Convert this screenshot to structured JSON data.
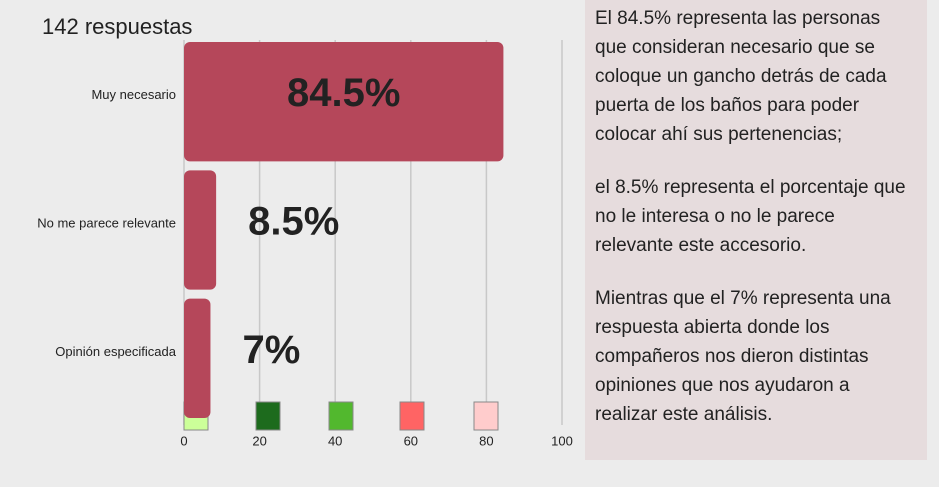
{
  "chart_data": {
    "type": "bar",
    "orientation": "horizontal",
    "subtitle": "142 respuestas",
    "categories": [
      "Muy necesario",
      "No me parece relevante",
      "Opinión especificada"
    ],
    "values": [
      84.5,
      8.5,
      7
    ],
    "value_labels": [
      "84.5%",
      "8.5%",
      "7%"
    ],
    "color": "#b5475a",
    "xlim": [
      0,
      100
    ],
    "xticks": [
      0,
      20,
      40,
      60,
      80,
      100
    ],
    "grid": true
  },
  "description": [
    "El 84.5%  representa las personas que consideran necesario que se coloque un gancho detrás de cada puerta de los baños para poder colocar ahí sus pertenencias;",
    "el 8.5% representa el porcentaje que no le interesa o no le parece relevante este accesorio.",
    "Mientras que el 7% representa  una respuesta abierta donde los compañeros nos dieron distintas opiniones que nos ayudaron a realizar este análisis."
  ]
}
